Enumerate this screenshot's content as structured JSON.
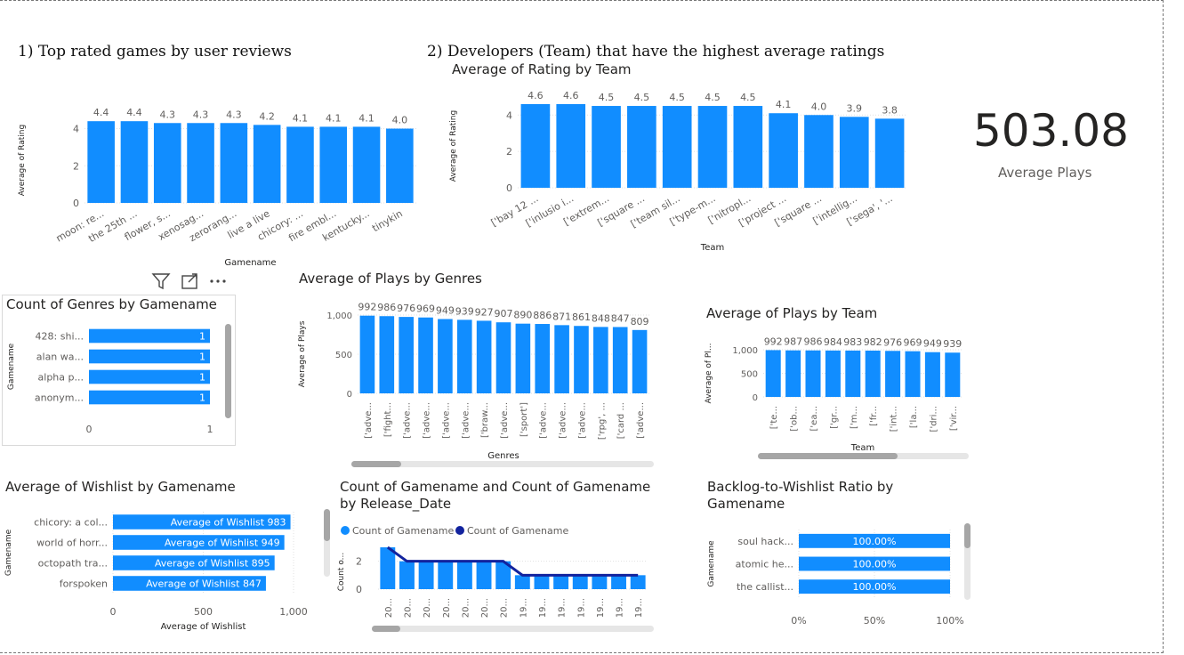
{
  "headings": {
    "h1": "1) Top rated games by user reviews",
    "h2": "2) Developers (Team) that have the highest average ratings"
  },
  "kpi": {
    "value": "503.08",
    "label": "Average Plays"
  },
  "titles": {
    "rating_by_team": "Average of Rating by Team",
    "genres_by_gamename": "Count of Genres by Gamename",
    "plays_by_genres": "Average of Plays by Genres",
    "plays_by_team": "Average of Plays by Team",
    "wishlist_by_gamename": "Average of Wishlist by Gamename",
    "count_by_release_1": "Count of Gamename and Count of Gamename",
    "count_by_release_2": "by Release_Date",
    "backlog_ratio_1": "Backlog-to-Wishlist Ratio by",
    "backlog_ratio_2": "Gamename"
  },
  "colors": {
    "bar": "#118DFF",
    "line": "#12239E",
    "grid": "#e1e1e1",
    "text": "#605e5c"
  },
  "icons": [
    "filter-icon",
    "focus-mode-icon",
    "more-options-icon"
  ],
  "chart_data": [
    {
      "id": "c1",
      "type": "bar",
      "categories": [
        "moon: re...",
        "the 25th ...",
        "flower, s...",
        "xenosag...",
        "zerorang...",
        "live a live",
        "chicory: ...",
        "fire embl...",
        "kentucky...",
        "tinykin"
      ],
      "values": [
        4.4,
        4.4,
        4.3,
        4.3,
        4.3,
        4.2,
        4.1,
        4.1,
        4.1,
        4.0
      ],
      "labels": [
        "4.4",
        "4.4",
        "4.3",
        "4.3",
        "4.3",
        "4.2",
        "4.1",
        "4.1",
        "4.1",
        "4.0"
      ],
      "xlabel": "Gamename",
      "ylabel": "Average of Rating",
      "ylim": [
        0,
        4.6
      ],
      "yticks": [
        0,
        2,
        4
      ],
      "ytick_labels": [
        "0",
        "2",
        "4"
      ]
    },
    {
      "id": "c2",
      "type": "bar",
      "categories": [
        "['bay 12 ...",
        "['inlusio i...",
        "['extrem...",
        "['square ...",
        "['team sil...",
        "['type-m...",
        "['nitropl...",
        "['project ...",
        "['square ...",
        "['intellig...",
        "['sega', '..."
      ],
      "values": [
        4.6,
        4.6,
        4.5,
        4.5,
        4.5,
        4.5,
        4.5,
        4.1,
        4.0,
        3.9,
        3.8
      ],
      "labels": [
        "4.6",
        "4.6",
        "4.5",
        "4.5",
        "4.5",
        "4.5",
        "4.5",
        "4.1",
        "4.0",
        "3.9",
        "3.8"
      ],
      "xlabel": "Team",
      "ylabel": "Average of Rating",
      "ylim": [
        0,
        4.6
      ],
      "yticks": [
        0,
        2,
        4
      ],
      "ytick_labels": [
        "0",
        "2",
        "4"
      ]
    },
    {
      "id": "c3",
      "type": "bar",
      "orientation": "horizontal",
      "categories": [
        "428: shi...",
        "alan wa...",
        "alpha p...",
        "anonym..."
      ],
      "values": [
        1,
        1,
        1,
        1
      ],
      "labels": [
        "1",
        "1",
        "1",
        "1"
      ],
      "xlabel": "",
      "ylabel": "Gamename",
      "xlim": [
        0,
        1
      ],
      "xticks": [
        0,
        1
      ],
      "xtick_labels": [
        "0",
        "1"
      ]
    },
    {
      "id": "c4",
      "type": "bar",
      "categories": [
        "['adve...",
        "['fight...",
        "['adve...",
        "['adve...",
        "['adve...",
        "['adve...",
        "['braw...",
        "['adve...",
        "['sport']",
        "['adve...",
        "['adve...",
        "['adve...",
        "['rpg', ...",
        "['card ...",
        "['adve..."
      ],
      "values": [
        992,
        986,
        976,
        969,
        949,
        939,
        927,
        907,
        890,
        886,
        871,
        861,
        848,
        847,
        809
      ],
      "labels": [
        "992",
        "986",
        "976",
        "969",
        "949",
        "939",
        "927",
        "907",
        "890",
        "886",
        "871",
        "861",
        "848",
        "847",
        "809"
      ],
      "xlabel": "Genres",
      "ylabel": "Average of Plays",
      "ylim": [
        0,
        1000
      ],
      "yticks": [
        0,
        500,
        1000
      ],
      "ytick_labels": [
        "0",
        "500",
        "1,000"
      ]
    },
    {
      "id": "c5",
      "type": "bar",
      "categories": [
        "['te...",
        "['ob...",
        "['ea...",
        "['gr...",
        "['m...",
        "['fr...",
        "['int...",
        "['la...",
        "['dri...",
        "['vir..."
      ],
      "values": [
        992,
        987,
        986,
        984,
        983,
        982,
        976,
        969,
        949,
        939
      ],
      "labels": [
        "992",
        "987",
        "986",
        "984",
        "983",
        "982",
        "976",
        "969",
        "949",
        "939"
      ],
      "xlabel": "Team",
      "ylabel": "Average of Pl...",
      "ylim": [
        0,
        1000
      ],
      "yticks": [
        0,
        500,
        1000
      ],
      "ytick_labels": [
        "0",
        "500",
        "1,000"
      ]
    },
    {
      "id": "c6",
      "type": "bar",
      "orientation": "horizontal",
      "categories": [
        "chicory: a col...",
        "world of horr...",
        "octopath tra...",
        "forspoken"
      ],
      "values": [
        983,
        949,
        895,
        847
      ],
      "labels": [
        "Average of Wishlist 983",
        "Average of Wishlist 949",
        "Average of Wishlist 895",
        "Average of Wishlist 847"
      ],
      "xlabel": "Average of Wishlist",
      "ylabel": "Gamename",
      "xlim": [
        0,
        1000
      ],
      "xticks": [
        0,
        500,
        1000
      ],
      "xtick_labels": [
        "0",
        "500",
        "1,000"
      ]
    },
    {
      "id": "c7",
      "type": "bar",
      "categories": [
        "20...",
        "20...",
        "20...",
        "20...",
        "20...",
        "20...",
        "20...",
        "19...",
        "19...",
        "19...",
        "19...",
        "19...",
        "19...",
        "19..."
      ],
      "series": [
        {
          "name": "Count of Gamename",
          "type": "bar",
          "values": [
            3,
            2,
            2,
            2,
            2,
            2,
            2,
            1,
            1,
            1,
            1,
            1,
            1,
            1
          ]
        },
        {
          "name": "Count of Gamename",
          "type": "line",
          "values": [
            3,
            2,
            2,
            2,
            2,
            2,
            2,
            1,
            1,
            1,
            1,
            1,
            1,
            1
          ]
        }
      ],
      "xlabel": "",
      "ylabel": "Count o...",
      "ylim": [
        0,
        3
      ],
      "yticks": [
        0,
        2
      ],
      "ytick_labels": [
        "0",
        "2"
      ]
    },
    {
      "id": "c8",
      "type": "bar",
      "orientation": "horizontal",
      "categories": [
        "soul hack...",
        "atomic he...",
        "the callist..."
      ],
      "values": [
        100,
        100,
        100
      ],
      "labels": [
        "100.00%",
        "100.00%",
        "100.00%"
      ],
      "xlabel": "",
      "ylabel": "Gamename",
      "xlim": [
        0,
        100
      ],
      "xticks": [
        0,
        50,
        100
      ],
      "xtick_labels": [
        "0%",
        "50%",
        "100%"
      ]
    }
  ]
}
